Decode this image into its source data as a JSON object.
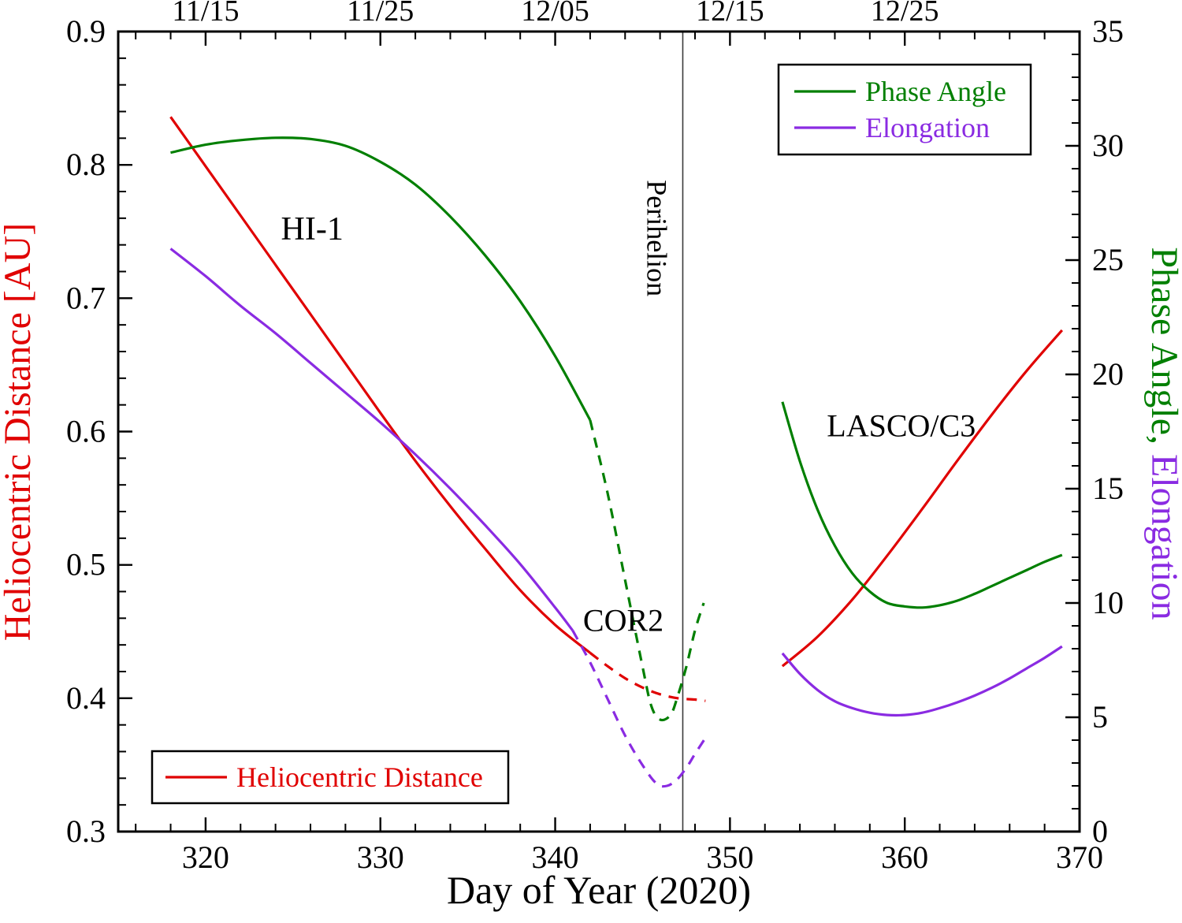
{
  "chart_data": {
    "type": "line",
    "title": "",
    "xlabel": "Day of Year (2020)",
    "ylabel_left": "Heliocentric Distance [AU]",
    "ylabel_right": [
      {
        "text": "Phase Angle, ",
        "color": "#007f00"
      },
      {
        "text": "Elongation",
        "color": "#8a2be2"
      }
    ],
    "background": "#ffffff",
    "x_range": [
      315,
      370
    ],
    "y_left_range": [
      0.3,
      0.9
    ],
    "y_right_range": [
      0,
      35
    ],
    "x_ticks_major": [
      320,
      330,
      340,
      350,
      360,
      370
    ],
    "x_tick_minor_step": 2,
    "y_left_ticks": [
      "0.3",
      "0.4",
      "0.5",
      "0.6",
      "0.7",
      "0.8",
      "0.9"
    ],
    "y_right_ticks": [
      0,
      5,
      10,
      15,
      20,
      25,
      30,
      35
    ],
    "top_axis_ticks": [
      {
        "day": 320,
        "label": "11/15"
      },
      {
        "day": 330,
        "label": "11/25"
      },
      {
        "day": 340,
        "label": "12/05"
      },
      {
        "day": 350,
        "label": "12/15"
      },
      {
        "day": 360,
        "label": "12/25"
      }
    ],
    "perihelion_day": 347.3,
    "colors": {
      "distance": "#e00000",
      "phase": "#007f00",
      "elongation": "#8a2be2",
      "axis": "#000000",
      "perihelion_line": "#3a3a3a"
    },
    "legend_top": {
      "entries": [
        {
          "label": "Phase Angle",
          "color": "#007f00",
          "dashed": false
        },
        {
          "label": "Elongation",
          "color": "#8a2be2",
          "dashed": false
        }
      ]
    },
    "legend_bottom": {
      "entries": [
        {
          "label": "Heliocentric Distance",
          "color": "#e00000",
          "dashed": false
        }
      ]
    },
    "annotations": [
      {
        "text": "HI-1",
        "day": 326.1,
        "y_left": 0.752,
        "rotate": 0,
        "size": 42
      },
      {
        "text": "COR2",
        "day": 343.9,
        "y_left": 0.458,
        "rotate": 0,
        "size": 40
      },
      {
        "text": "LASCO/C3",
        "day": 359.8,
        "y_left": 0.604,
        "rotate": 0,
        "size": 40
      },
      {
        "text": "Perihelion",
        "day": 345.8,
        "y_left": 0.745,
        "rotate": 90,
        "size": 36
      }
    ],
    "series": [
      {
        "name": "heliocentric-distance-hi1",
        "axis": "left",
        "color": "#e00000",
        "dashed": false,
        "points": [
          [
            318,
            0.836
          ],
          [
            320,
            0.799
          ],
          [
            322,
            0.762
          ],
          [
            324,
            0.725
          ],
          [
            326,
            0.688
          ],
          [
            328,
            0.651
          ],
          [
            330,
            0.614
          ],
          [
            332,
            0.578
          ],
          [
            334,
            0.544
          ],
          [
            336,
            0.512
          ],
          [
            338,
            0.481
          ],
          [
            340,
            0.455
          ],
          [
            342,
            0.434
          ]
        ]
      },
      {
        "name": "heliocentric-distance-extrapolated",
        "axis": "left",
        "color": "#e00000",
        "dashed": true,
        "points": [
          [
            342,
            0.434
          ],
          [
            343,
            0.424
          ],
          [
            344,
            0.415
          ],
          [
            345,
            0.408
          ],
          [
            346,
            0.403
          ],
          [
            347,
            0.4
          ],
          [
            348,
            0.399
          ],
          [
            348.6,
            0.398
          ]
        ]
      },
      {
        "name": "heliocentric-distance-lasco",
        "axis": "left",
        "color": "#e00000",
        "dashed": false,
        "points": [
          [
            353,
            0.424
          ],
          [
            355,
            0.446
          ],
          [
            357,
            0.474
          ],
          [
            359,
            0.507
          ],
          [
            361,
            0.542
          ],
          [
            363,
            0.578
          ],
          [
            365,
            0.613
          ],
          [
            367,
            0.646
          ],
          [
            369,
            0.676
          ]
        ]
      },
      {
        "name": "phase-angle-hi1",
        "axis": "right",
        "color": "#007f00",
        "dashed": false,
        "points": [
          [
            318,
            29.7
          ],
          [
            320,
            30.05
          ],
          [
            322,
            30.25
          ],
          [
            324,
            30.35
          ],
          [
            326,
            30.3
          ],
          [
            328,
            30.0
          ],
          [
            330,
            29.3
          ],
          [
            332,
            28.3
          ],
          [
            334,
            26.9
          ],
          [
            336,
            25.2
          ],
          [
            338,
            23.2
          ],
          [
            340,
            20.8
          ],
          [
            342,
            18.0
          ]
        ]
      },
      {
        "name": "phase-angle-extrapolated",
        "axis": "right",
        "color": "#007f00",
        "dashed": true,
        "points": [
          [
            342,
            18.0
          ],
          [
            343,
            14.8
          ],
          [
            344,
            11.0
          ],
          [
            345,
            7.2
          ],
          [
            345.5,
            5.5
          ],
          [
            346,
            4.9
          ],
          [
            346.6,
            5.1
          ],
          [
            347,
            5.9
          ],
          [
            347.5,
            7.2
          ],
          [
            348,
            8.8
          ],
          [
            348.5,
            10.0
          ]
        ]
      },
      {
        "name": "phase-angle-lasco",
        "axis": "right",
        "color": "#007f00",
        "dashed": false,
        "points": [
          [
            353,
            18.8
          ],
          [
            354,
            16.2
          ],
          [
            355,
            14.1
          ],
          [
            356,
            12.5
          ],
          [
            357,
            11.3
          ],
          [
            358,
            10.5
          ],
          [
            359,
            10.0
          ],
          [
            360,
            9.85
          ],
          [
            361,
            9.8
          ],
          [
            362,
            9.9
          ],
          [
            363,
            10.1
          ],
          [
            364,
            10.4
          ],
          [
            365,
            10.75
          ],
          [
            366,
            11.1
          ],
          [
            367,
            11.45
          ],
          [
            368,
            11.8
          ],
          [
            369,
            12.1
          ]
        ]
      },
      {
        "name": "elongation-hi1",
        "axis": "right",
        "color": "#8a2be2",
        "dashed": false,
        "points": [
          [
            318,
            25.5
          ],
          [
            320,
            24.3
          ],
          [
            322,
            23.0
          ],
          [
            324,
            21.8
          ],
          [
            326,
            20.5
          ],
          [
            328,
            19.2
          ],
          [
            330,
            17.9
          ],
          [
            332,
            16.5
          ],
          [
            334,
            15.0
          ],
          [
            336,
            13.4
          ],
          [
            338,
            11.7
          ],
          [
            340,
            9.8
          ],
          [
            341,
            8.8
          ]
        ]
      },
      {
        "name": "elongation-extrapolated",
        "axis": "right",
        "color": "#8a2be2",
        "dashed": true,
        "points": [
          [
            341,
            8.8
          ],
          [
            342,
            7.4
          ],
          [
            343,
            5.8
          ],
          [
            344,
            4.2
          ],
          [
            345,
            2.9
          ],
          [
            345.8,
            2.1
          ],
          [
            346.4,
            2.0
          ],
          [
            347,
            2.3
          ],
          [
            347.6,
            2.9
          ],
          [
            348,
            3.4
          ],
          [
            348.6,
            4.1
          ]
        ]
      },
      {
        "name": "elongation-lasco",
        "axis": "right",
        "color": "#8a2be2",
        "dashed": false,
        "points": [
          [
            353,
            7.8
          ],
          [
            354,
            6.9
          ],
          [
            355,
            6.2
          ],
          [
            356,
            5.7
          ],
          [
            357,
            5.4
          ],
          [
            358,
            5.2
          ],
          [
            359,
            5.1
          ],
          [
            360,
            5.1
          ],
          [
            361,
            5.2
          ],
          [
            362,
            5.4
          ],
          [
            363,
            5.65
          ],
          [
            364,
            5.95
          ],
          [
            365,
            6.3
          ],
          [
            366,
            6.7
          ],
          [
            367,
            7.15
          ],
          [
            368,
            7.6
          ],
          [
            369,
            8.1
          ]
        ]
      }
    ]
  }
}
